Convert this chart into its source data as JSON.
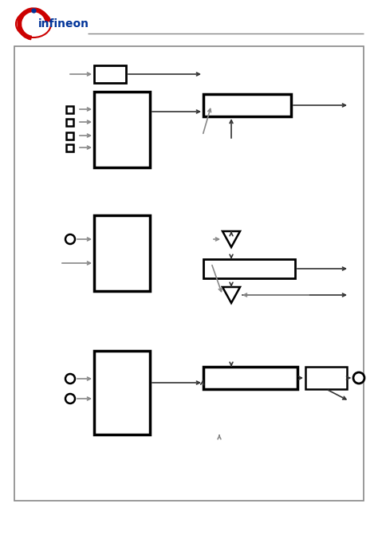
{
  "bg_color": "#ffffff",
  "border_color": "#888888",
  "block_lw": 2.0,
  "line_color": "#888888",
  "dark_line_color": "#333333",
  "figure_width": 4.74,
  "figure_height": 6.71,
  "dpi": 100
}
